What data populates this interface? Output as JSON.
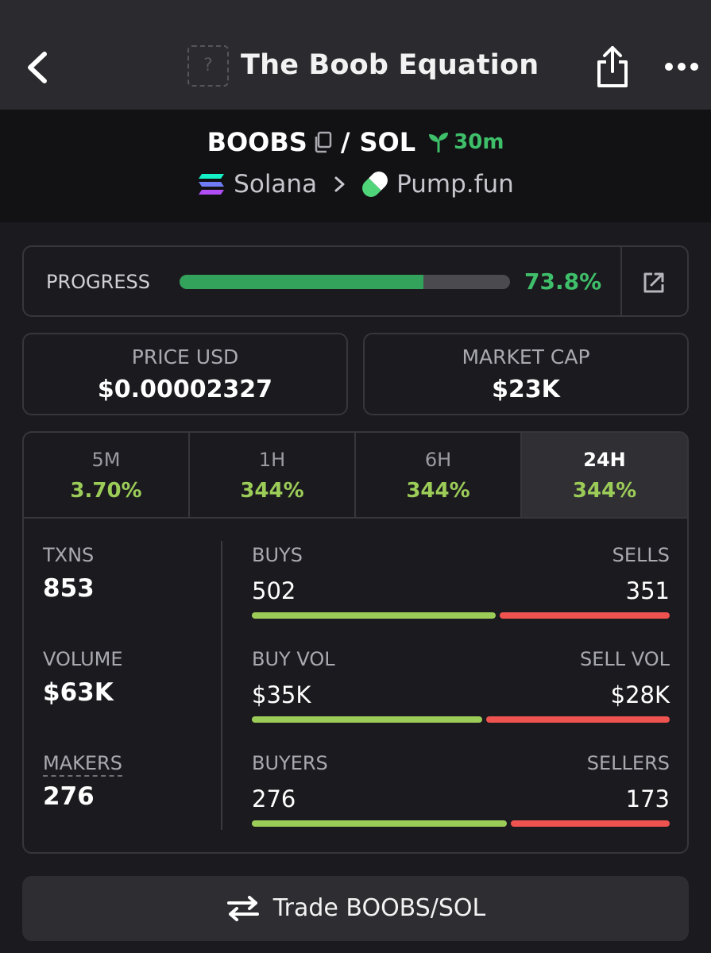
{
  "header": {
    "title": "The Boob Equation",
    "avatar_placeholder": "?"
  },
  "pair": {
    "base_symbol": "BOOBS",
    "separator": "/",
    "quote_symbol": "SOL",
    "age": "30m",
    "chain": "Solana",
    "dex": "Pump.fun"
  },
  "progress": {
    "label": "PROGRESS",
    "value_text": "73.8%",
    "fraction": 0.738
  },
  "price": {
    "label": "PRICE USD",
    "value": "$0.00002327"
  },
  "market_cap": {
    "label": "MARKET CAP",
    "value": "$23K"
  },
  "timeframes": [
    {
      "label": "5M",
      "change": "3.70%",
      "active": false
    },
    {
      "label": "1H",
      "change": "344%",
      "active": false
    },
    {
      "label": "6H",
      "change": "344%",
      "active": false
    },
    {
      "label": "24H",
      "change": "344%",
      "active": true
    }
  ],
  "metrics": {
    "txns": {
      "label": "TXNS",
      "value": "853"
    },
    "volume": {
      "label": "VOLUME",
      "value": "$63K"
    },
    "makers": {
      "label": "MAKERS",
      "value": "276"
    }
  },
  "splits": {
    "txns": {
      "left_label": "BUYS",
      "left_value": "502",
      "right_label": "SELLS",
      "right_value": "351",
      "buy_share": 0.5885
    },
    "volume": {
      "left_label": "BUY VOL",
      "left_value": "$35K",
      "right_label": "SELL VOL",
      "right_value": "$28K",
      "buy_share": 0.5556
    },
    "makers": {
      "left_label": "BUYERS",
      "left_value": "276",
      "right_label": "SELLERS",
      "right_value": "173",
      "buy_share": 0.6147
    }
  },
  "trade_button": {
    "label": "Trade BOOBS/SOL"
  },
  "colors": {
    "positive": "#3fbf6a",
    "change": "#9ccc58",
    "buy_bar": "#9ccc58",
    "sell_bar": "#ef5350"
  }
}
